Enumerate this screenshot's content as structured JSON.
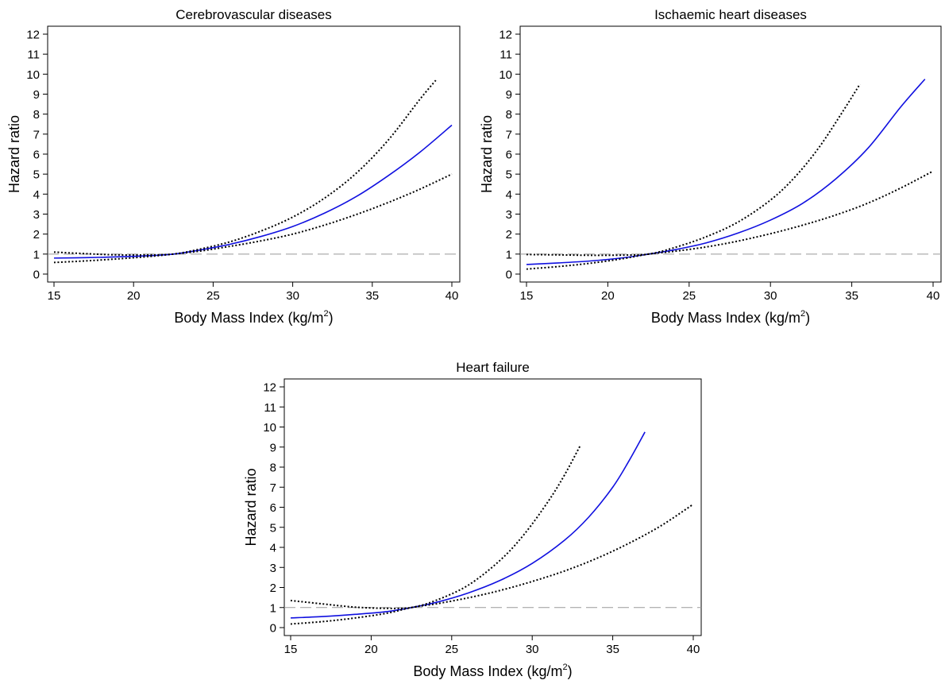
{
  "figure": {
    "xlabel_main": "Body Mass Index (kg/m",
    "xlabel_sup": "2",
    "xlabel_close": ")",
    "ylabel": "Hazard ratio",
    "colors": {
      "estimate": "#1010e0",
      "ci": "#000000",
      "reference": "#999999"
    }
  },
  "chart_data": [
    {
      "type": "line",
      "title": "Cerebrovascular diseases",
      "xlim": [
        15,
        40
      ],
      "ylim": [
        0,
        12
      ],
      "xticks": [
        15,
        20,
        25,
        30,
        35,
        40
      ],
      "yticks": [
        0,
        1,
        2,
        3,
        4,
        5,
        6,
        7,
        8,
        9,
        10,
        11,
        12
      ],
      "reference_line": 1,
      "series": [
        {
          "role": "estimate",
          "style": "solid",
          "x": [
            15,
            17,
            19,
            21,
            22.5,
            24,
            26,
            28,
            30,
            32,
            34,
            36,
            38,
            40
          ],
          "y": [
            0.8,
            0.82,
            0.86,
            0.92,
            1.0,
            1.18,
            1.48,
            1.88,
            2.38,
            3.05,
            3.88,
            4.92,
            6.1,
            7.45
          ]
        },
        {
          "role": "upper",
          "style": "dotted",
          "x": [
            15,
            17,
            19,
            21,
            22.5,
            24,
            26,
            28,
            30,
            32,
            34,
            36,
            38,
            39
          ],
          "y": [
            1.1,
            1.02,
            0.96,
            0.96,
            1.0,
            1.22,
            1.6,
            2.15,
            2.85,
            3.8,
            5.05,
            6.7,
            8.75,
            9.7
          ]
        },
        {
          "role": "lower",
          "style": "dotted",
          "x": [
            15,
            17,
            19,
            21,
            22.5,
            24,
            26,
            28,
            30,
            32,
            34,
            36,
            38,
            40
          ],
          "y": [
            0.58,
            0.66,
            0.76,
            0.88,
            1.0,
            1.13,
            1.38,
            1.66,
            2.0,
            2.45,
            2.98,
            3.58,
            4.25,
            5.0
          ]
        }
      ]
    },
    {
      "type": "line",
      "title": "Ischaemic heart diseases",
      "xlim": [
        15,
        40
      ],
      "ylim": [
        0,
        12
      ],
      "xticks": [
        15,
        20,
        25,
        30,
        35,
        40
      ],
      "yticks": [
        0,
        1,
        2,
        3,
        4,
        5,
        6,
        7,
        8,
        9,
        10,
        11,
        12
      ],
      "reference_line": 1,
      "series": [
        {
          "role": "estimate",
          "style": "solid",
          "x": [
            15,
            17,
            19,
            21,
            22.5,
            24,
            26,
            28,
            30,
            32,
            34,
            36,
            38,
            39.5
          ],
          "y": [
            0.48,
            0.56,
            0.66,
            0.82,
            1.0,
            1.2,
            1.55,
            2.05,
            2.7,
            3.55,
            4.75,
            6.3,
            8.35,
            9.75
          ]
        },
        {
          "role": "upper",
          "style": "dotted",
          "x": [
            15,
            17,
            19,
            21,
            22.5,
            24,
            26,
            28,
            30,
            31.5,
            33,
            34.5,
            35.5
          ],
          "y": [
            0.98,
            0.96,
            0.94,
            0.95,
            1.0,
            1.3,
            1.85,
            2.6,
            3.7,
            4.85,
            6.35,
            8.2,
            9.5
          ]
        },
        {
          "role": "lower",
          "style": "dotted",
          "x": [
            15,
            17,
            19,
            21,
            22.5,
            24,
            26,
            28,
            30,
            32,
            34,
            36,
            38,
            40
          ],
          "y": [
            0.25,
            0.38,
            0.55,
            0.78,
            1.0,
            1.13,
            1.35,
            1.65,
            2.02,
            2.45,
            2.95,
            3.55,
            4.3,
            5.15
          ]
        }
      ]
    },
    {
      "type": "line",
      "title": "Heart failure",
      "xlim": [
        15,
        40
      ],
      "ylim": [
        0,
        12
      ],
      "xticks": [
        15,
        20,
        25,
        30,
        35,
        40
      ],
      "yticks": [
        0,
        1,
        2,
        3,
        4,
        5,
        6,
        7,
        8,
        9,
        10,
        11,
        12
      ],
      "reference_line": 1,
      "series": [
        {
          "role": "estimate",
          "style": "solid",
          "x": [
            15,
            17,
            19,
            21,
            22.5,
            24,
            26,
            28,
            30,
            32,
            33.5,
            35,
            36,
            37
          ],
          "y": [
            0.48,
            0.55,
            0.66,
            0.8,
            1.0,
            1.25,
            1.72,
            2.35,
            3.2,
            4.35,
            5.5,
            7.0,
            8.3,
            9.75
          ]
        },
        {
          "role": "upper",
          "style": "dotted",
          "x": [
            15,
            17,
            19,
            21,
            22.5,
            24,
            26,
            28,
            29.5,
            31,
            32,
            33
          ],
          "y": [
            1.35,
            1.18,
            1.02,
            0.96,
            1.0,
            1.35,
            2.1,
            3.35,
            4.65,
            6.3,
            7.6,
            9.1
          ]
        },
        {
          "role": "lower",
          "style": "dotted",
          "x": [
            15,
            17,
            19,
            21,
            22.5,
            24,
            26,
            28,
            30,
            32,
            34,
            36,
            38,
            40
          ],
          "y": [
            0.18,
            0.3,
            0.48,
            0.72,
            1.0,
            1.18,
            1.48,
            1.85,
            2.3,
            2.82,
            3.45,
            4.2,
            5.08,
            6.15
          ]
        }
      ]
    }
  ]
}
